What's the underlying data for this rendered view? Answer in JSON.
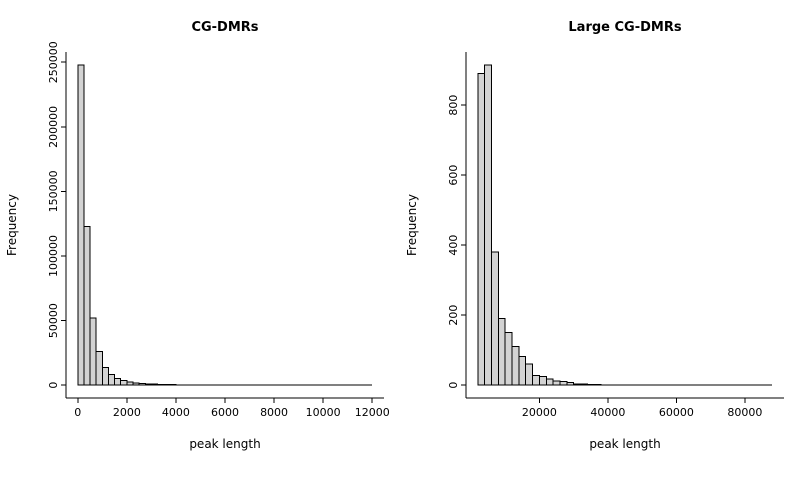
{
  "page": {
    "background": "#ffffff"
  },
  "chart_data": [
    {
      "type": "bar",
      "subtype": "histogram",
      "title": "CG-DMRs",
      "xlabel": "peak length",
      "ylabel": "Frequency",
      "bar_fill": "#d3d3d3",
      "bar_stroke": "#000000",
      "xlim": [
        0,
        12000
      ],
      "ylim": [
        0,
        248000
      ],
      "xticks": [
        0,
        2000,
        4000,
        6000,
        8000,
        10000,
        12000
      ],
      "yticks": [
        0,
        50000,
        100000,
        150000,
        200000,
        250000
      ],
      "bin_start": 0,
      "bin_width": 250,
      "counts": [
        248000,
        123000,
        52000,
        26000,
        13500,
        8200,
        5200,
        3600,
        2500,
        1800,
        1300,
        1000,
        800,
        620,
        500,
        400,
        330,
        270,
        220,
        180,
        150,
        120,
        100,
        85,
        70,
        60,
        50,
        42,
        35,
        30,
        25,
        21,
        18,
        15,
        12,
        10,
        9,
        8,
        7,
        6,
        5,
        4,
        3,
        3,
        2,
        2,
        1,
        1
      ]
    },
    {
      "type": "bar",
      "subtype": "histogram",
      "title": "Large CG-DMRs",
      "xlabel": "peak length",
      "ylabel": "Frequency",
      "bar_fill": "#d3d3d3",
      "bar_stroke": "#000000",
      "xlim": [
        2000,
        88000
      ],
      "ylim": [
        0,
        915
      ],
      "xticks": [
        20000,
        40000,
        60000,
        80000
      ],
      "yticks": [
        0,
        200,
        400,
        600,
        800
      ],
      "bin_start": 2000,
      "bin_width": 2000,
      "counts": [
        890,
        915,
        380,
        190,
        150,
        110,
        82,
        60,
        28,
        25,
        18,
        12,
        10,
        8,
        4,
        3,
        2,
        2,
        1,
        1,
        0,
        1,
        0,
        0,
        1,
        0,
        0,
        0,
        0,
        0,
        0,
        0,
        0,
        0,
        0,
        0,
        0,
        0,
        0,
        0,
        0,
        0,
        1
      ]
    }
  ]
}
